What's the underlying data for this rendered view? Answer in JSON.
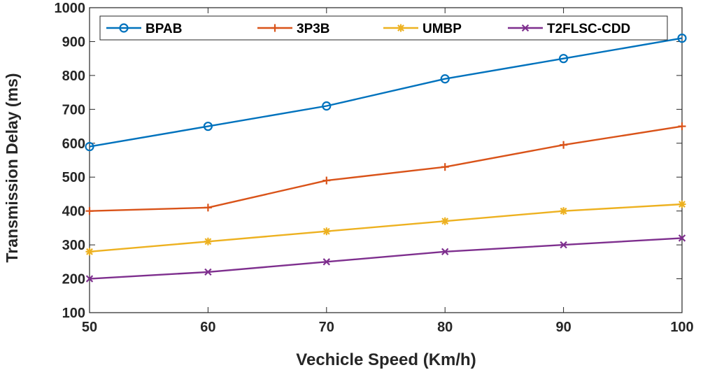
{
  "chart_data": {
    "type": "line",
    "title": "",
    "xlabel": "Vechicle Speed (Km/h)",
    "ylabel": "Transmission Delay (ms)",
    "x": [
      50,
      60,
      70,
      80,
      90,
      100
    ],
    "xlim": [
      50,
      100
    ],
    "ylim": [
      100,
      1000
    ],
    "xticks": [
      50,
      60,
      70,
      80,
      90,
      100
    ],
    "yticks": [
      100,
      200,
      300,
      400,
      500,
      600,
      700,
      800,
      900,
      1000
    ],
    "grid": false,
    "legend_position": "top",
    "series": [
      {
        "name": "BPAB",
        "values": [
          590,
          650,
          710,
          790,
          850,
          910
        ],
        "color": "#0072BD",
        "marker": "circle"
      },
      {
        "name": "3P3B",
        "values": [
          400,
          410,
          490,
          530,
          595,
          650
        ],
        "color": "#D95319",
        "marker": "plus"
      },
      {
        "name": "UMBP",
        "values": [
          280,
          310,
          340,
          370,
          400,
          420
        ],
        "color": "#EDB120",
        "marker": "asterisk"
      },
      {
        "name": "T2FLSC-CDD",
        "values": [
          200,
          220,
          250,
          280,
          300,
          320
        ],
        "color": "#7E2F8E",
        "marker": "x"
      }
    ]
  }
}
